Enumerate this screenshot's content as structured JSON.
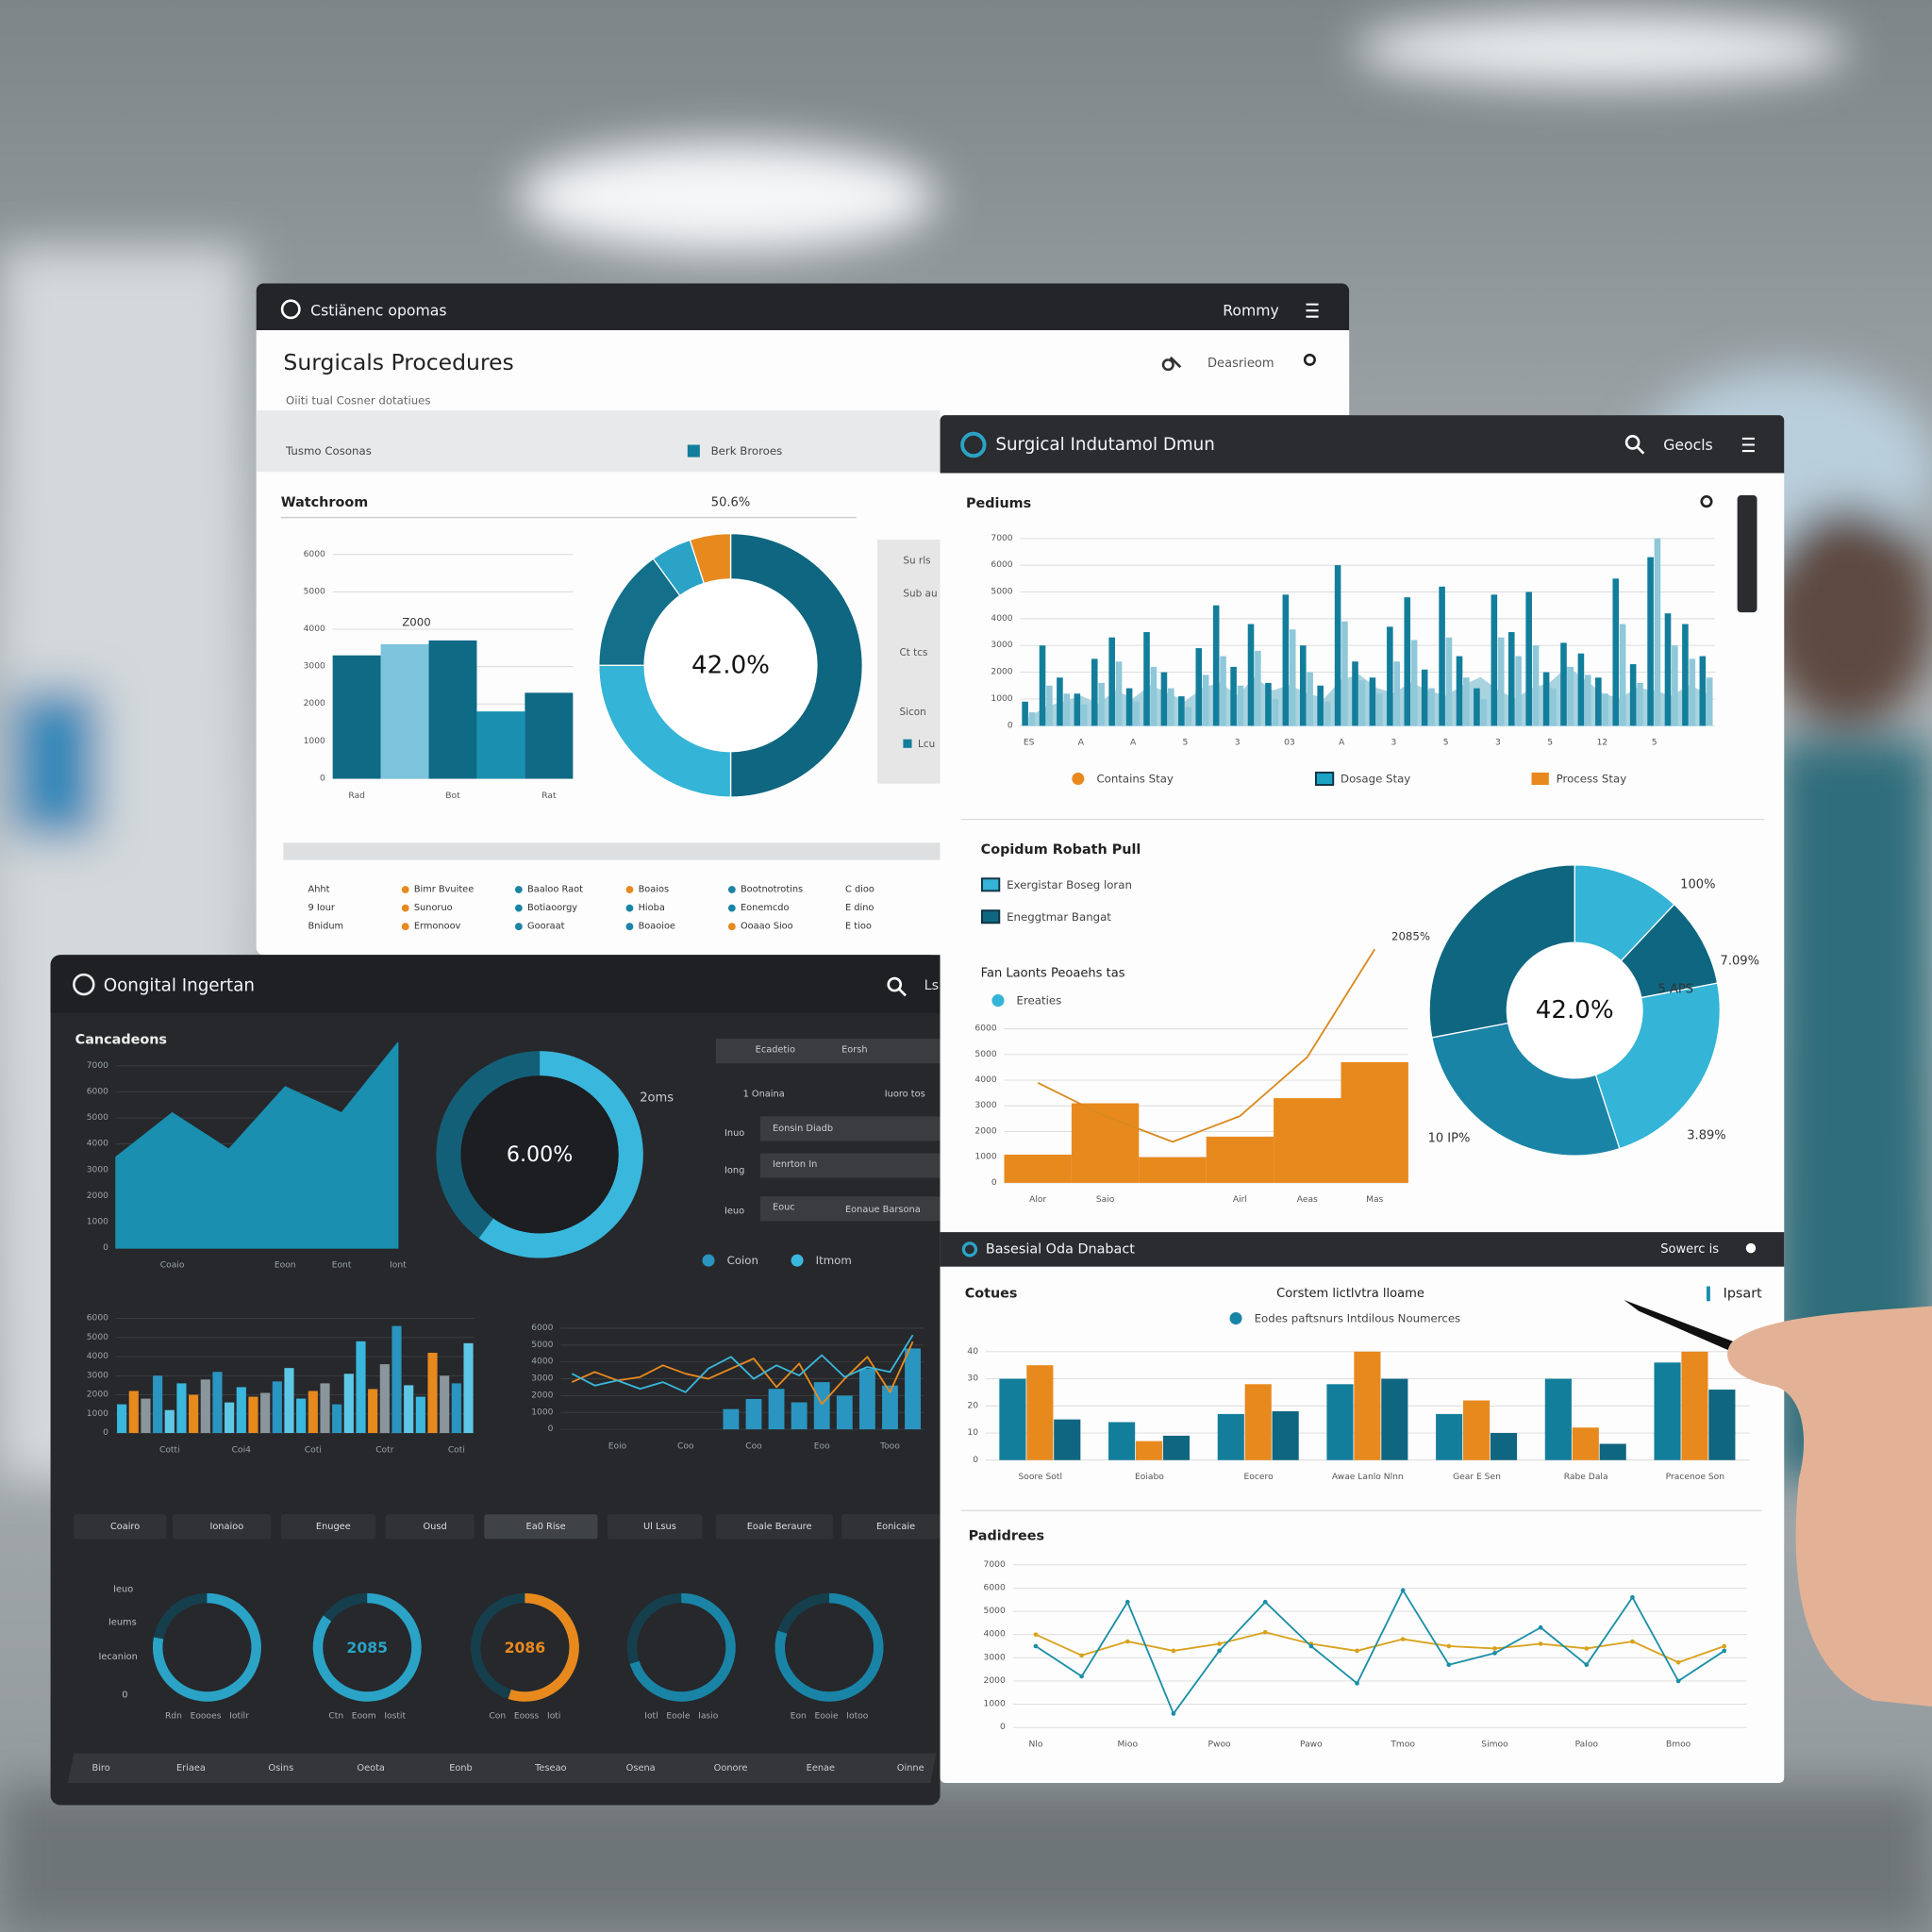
{
  "panel_a": {
    "app": "Cstiänenc opomas",
    "user": "Rommy",
    "title": "Surgicals Procedures",
    "subtitle": "Oiiti tual Cosner dotatiues",
    "band_left": "Tusmo Cosonas",
    "band_right": "Berk Broroes",
    "search": "Deasrieom",
    "side": [
      "Su rls",
      "Sub au",
      "Ct tcs",
      "Sicon",
      "Lcu"
    ],
    "legend": [
      {
        "label": "Bimr Bvuitee",
        "color": "#e8891e"
      },
      {
        "label": "Sunoruo",
        "color": "#e8891e"
      },
      {
        "label": "Ermonoov",
        "color": "#e8891e"
      },
      {
        "label": "Baaloo Raot",
        "color": "#1a84a6"
      },
      {
        "label": "Botiaoorgy",
        "color": "#1a84a6"
      },
      {
        "label": "Gooraat",
        "color": "#1a84a6"
      },
      {
        "label": "Boaios",
        "color": "#e8891e"
      },
      {
        "label": "Hioba",
        "color": "#1a84a6"
      },
      {
        "label": "Boaoioe",
        "color": "#1a84a6"
      },
      {
        "label": "Bootnotrotins",
        "color": "#1a84a6"
      },
      {
        "label": "Eonemcdo",
        "color": "#1a84a6"
      },
      {
        "label": "Ooaao Sioo",
        "color": "#e8891e"
      }
    ],
    "notes": [
      "Ahht",
      "9 Iour",
      "Bnidum",
      "C dioo",
      "E dino",
      "E tioo"
    ]
  },
  "panel_b": {
    "app": "Surgical Indutamol Dmun",
    "user": "Geocls",
    "section": "Basesial Oda Dnabact",
    "section_right": "Sowerc is",
    "action": "Ipsart"
  },
  "panel_c": {
    "app": "Oongital Ingertan",
    "right": "Ls",
    "menu": [
      "Ecadetio",
      "Eorsh",
      "1 Onaina",
      "Iuoro tos",
      "Inuo",
      "Eonsin Diadb",
      "Iong",
      "Ienrton In",
      "Ieuo",
      "Eouc",
      "Eonaue Barsona"
    ],
    "buttons": [
      "Coairo",
      "Ionaioo",
      "Enugee",
      "Ousd",
      "Ea0 Rise",
      "Ul Lsus",
      "Eoale Beraure",
      "Eonicaie"
    ],
    "row_labels": [
      "Ieuo",
      "Ieums",
      "Iecanion",
      "0"
    ],
    "tabs": [
      "Biro",
      "Eriaea",
      "Osins",
      "Oeota",
      "Eonb",
      "Teseao",
      "Osena",
      "Oonore",
      "Eenae",
      "Oinne"
    ]
  },
  "chart_data": [
    {
      "type": "bar",
      "title": "Watchroom",
      "annotation": "Z000",
      "categories": [
        "Rad",
        null,
        "Bot",
        null,
        "Rat"
      ],
      "series": [
        {
          "values": [
            3300,
            3600,
            3700,
            1800,
            2300
          ],
          "color": "#0e6a85",
          "colors": [
            "#0e6a85",
            "#7cc4dc",
            "#0e6a85",
            "#1a8fb0",
            "#0e6a85"
          ]
        }
      ],
      "ylim": [
        0,
        6000
      ],
      "yticks": [
        0,
        1000,
        2000,
        3000,
        4000,
        5000,
        6000
      ],
      "grid": true
    },
    {
      "type": "donut",
      "center_label": "42.0%",
      "annotations": [
        "50.6%"
      ],
      "values": [
        50,
        25,
        15,
        5,
        5
      ],
      "colors": [
        "#0f6680",
        "#34b4d6",
        "#136f8a",
        "#2aa3c6",
        "#e8891e"
      ]
    },
    {
      "type": "bar",
      "title": "Pediums",
      "legend": [
        {
          "label": "Contains  Stay",
          "color": "#e8891e"
        },
        {
          "label": "Dosage  Stay",
          "color": "#1ba3c6"
        },
        {
          "label": "Process  Stay",
          "color": "#e8891e"
        }
      ],
      "categories": [
        "ES",
        null,
        null,
        "A",
        null,
        null,
        "A",
        null,
        null,
        "5",
        null,
        null,
        "3",
        null,
        null,
        "03",
        null,
        null,
        "A",
        null,
        null,
        "3",
        null,
        null,
        "5",
        null,
        null,
        "3",
        null,
        null,
        "5",
        null,
        null,
        "12",
        null,
        null,
        "5",
        null,
        null,
        null
      ],
      "series": [
        {
          "type": "area",
          "color": "#a9d3de",
          "values": [
            300,
            700,
            900,
            1100,
            800,
            1300,
            1000,
            1500,
            1200,
            900,
            1400,
            1600,
            1100,
            1800,
            1300,
            1500,
            1200,
            1000,
            1700,
            1900,
            1400,
            1200,
            1600,
            1300,
            1100,
            1500,
            1800,
            1300,
            1000,
            1400,
            1600,
            2200,
            1700,
            1200,
            1000,
            1400,
            1300,
            1100,
            1500,
            1200
          ]
        },
        {
          "type": "bar",
          "color": "#137e9c",
          "values": [
            900,
            3000,
            1800,
            1200,
            2500,
            3300,
            1400,
            3500,
            2000,
            1100,
            2900,
            4500,
            2200,
            3800,
            1600,
            4900,
            3000,
            1500,
            6000,
            2400,
            1800,
            3700,
            4800,
            2100,
            5200,
            2600,
            1400,
            4900,
            3500,
            5000,
            2000,
            3100,
            2700,
            1800,
            5500,
            2300,
            6300,
            4200,
            3800,
            2600
          ]
        },
        {
          "type": "bar",
          "color": "#8fc8d8",
          "values": [
            500,
            1500,
            1200,
            800,
            1600,
            2400,
            900,
            2200,
            1400,
            700,
            1900,
            2600,
            1500,
            2800,
            1000,
            3600,
            2000,
            900,
            3900,
            1700,
            1200,
            2400,
            3200,
            1400,
            3300,
            1800,
            1000,
            3300,
            2600,
            3000,
            1400,
            2200,
            1900,
            1200,
            3800,
            1600,
            7000,
            3000,
            2500,
            1800
          ]
        }
      ],
      "ylim": [
        0,
        7000
      ],
      "yticks": [
        0,
        1000,
        2000,
        3000,
        4000,
        5000,
        6000,
        7000
      ],
      "grid": true
    },
    {
      "type": "bar",
      "title": "Copidum Robath Pull",
      "subtitle": "Fan Laonts Peoaehs tas",
      "annotation": "2085%",
      "legend": [
        {
          "label": "Exergistar Boseg loran",
          "color": "#34b4d6"
        },
        {
          "label": "Eneggtmar Bangat",
          "color": "#0f6680"
        },
        {
          "label": "Ereaties",
          "color": "#34b4d6"
        }
      ],
      "categories": [
        "Alor",
        "Saio",
        null,
        "Airl",
        "Aeas",
        "Mas"
      ],
      "series": [
        {
          "type": "bar",
          "color": "#e8891e",
          "values": [
            1100,
            3100,
            1000,
            1800,
            3300,
            4700
          ]
        },
        {
          "type": "line",
          "color": "#d98a20",
          "values": [
            3900,
            2600,
            1600,
            2600,
            4900,
            9100
          ]
        }
      ],
      "ylim": [
        0,
        6000
      ],
      "yticks": [
        0,
        1000,
        2000,
        3000,
        4000,
        5000,
        6000
      ],
      "grid": true
    },
    {
      "type": "pie",
      "center_label": "42.0%",
      "annotations": [
        "100%",
        "7.09%",
        "5 APS",
        "3.89%",
        "10 IP%"
      ],
      "values": [
        12,
        10,
        23,
        27,
        28
      ],
      "colors": [
        "#34b4d6",
        "#0f6680",
        "#34b4d6",
        "#1a84a6",
        "#0f6680"
      ]
    },
    {
      "type": "bar",
      "title": "Cotues",
      "subtitle": "Corstem lictlvtra lloame",
      "legend": [
        {
          "label": "Eodes paftsnurs Intdilous Noumerces",
          "color": "#1a84a6"
        }
      ],
      "categories": [
        "Soore Sotl",
        "Eoiabo",
        "Eocero",
        "Awae Lanlo Nlnn",
        "Gear E Sen",
        "Rabe Dala",
        "Pracenoe Son"
      ],
      "series": [
        {
          "color": "#137e9c",
          "values": [
            30,
            14,
            17,
            28,
            17,
            30,
            36
          ]
        },
        {
          "color": "#e8891e",
          "values": [
            35,
            7,
            28,
            40,
            22,
            12,
            40
          ]
        },
        {
          "color": "#0f6680",
          "values": [
            15,
            9,
            18,
            30,
            10,
            6,
            26
          ]
        }
      ],
      "ylim": [
        0,
        40
      ],
      "yticks": [
        0,
        10,
        20,
        30,
        40
      ],
      "grid": true
    },
    {
      "type": "line",
      "title": "Padidrees",
      "categories": [
        "Nlo",
        null,
        "Mioo",
        null,
        "Pwoo",
        null,
        "Pawo",
        null,
        "Tmoo",
        null,
        "Simoo",
        null,
        "Paloo",
        null,
        "Bmoo",
        null
      ],
      "series": [
        {
          "color": "#d9a21e",
          "values": [
            4000,
            3100,
            3700,
            3300,
            3600,
            4100,
            3600,
            3300,
            3800,
            3500,
            3400,
            3600,
            3400,
            3700,
            2800,
            3500
          ]
        },
        {
          "color": "#1a8fa6",
          "values": [
            3500,
            2200,
            5400,
            600,
            3300,
            5400,
            3500,
            1900,
            5900,
            2700,
            3200,
            4300,
            2700,
            5600,
            2000,
            3300
          ]
        }
      ],
      "ylim": [
        0,
        7000
      ],
      "yticks": [
        0,
        1000,
        2000,
        3000,
        4000,
        5000,
        6000,
        7000
      ],
      "grid": true
    },
    {
      "type": "area",
      "title": "Cancadeons",
      "categories": [
        null,
        "Coaio",
        null,
        "Eoon",
        "Eont",
        "Iont"
      ],
      "series": [
        {
          "color": "#1a8fb0",
          "values": [
            3500,
            5200,
            3800,
            6200,
            5200,
            7900
          ]
        }
      ],
      "ylim": [
        0,
        7000
      ],
      "yticks": [
        0,
        1000,
        2000,
        3000,
        4000,
        5000,
        6000,
        7000
      ],
      "grid": true
    },
    {
      "type": "donut",
      "center_label": "6.00%",
      "annotations": [
        "2oms"
      ],
      "legend": [
        {
          "label": "Coion",
          "color": "#2a95c0"
        },
        {
          "label": "Itmom",
          "color": "#3ab7dc"
        }
      ],
      "values": [
        60,
        40
      ],
      "colors": [
        "#3ab7dc",
        "#145f78"
      ]
    },
    {
      "type": "bar",
      "categories": [
        null,
        null,
        null,
        null,
        "Cotti",
        null,
        null,
        null,
        null,
        null,
        "Coi4",
        null,
        null,
        null,
        null,
        null,
        "Coti",
        null,
        null,
        null,
        null,
        null,
        "Cotr",
        null,
        null,
        null,
        null,
        null,
        "Coti",
        null
      ],
      "series": [
        {
          "color": "#3ab7dc",
          "values": [
            1500,
            2200,
            1800,
            3000,
            1200,
            2600,
            2000,
            2800,
            3200,
            1600,
            2400,
            1900,
            2100,
            2700,
            3400,
            1800,
            2200,
            2600,
            1500,
            3100,
            4800,
            2300,
            3600,
            5600,
            2500,
            1900,
            4200,
            3000,
            2600,
            4700
          ],
          "colors": [
            "#3ab7dc",
            "#e8891e",
            "#8a959c",
            "#2a95c0",
            "#5fc7e6",
            "#3ab7dc",
            "#e8891e",
            "#8a959c",
            "#2a95c0",
            "#5fc7e6",
            "#3ab7dc",
            "#e8891e",
            "#8a959c",
            "#2a95c0",
            "#5fc7e6",
            "#3ab7dc",
            "#e8891e",
            "#8a959c",
            "#2a95c0",
            "#5fc7e6",
            "#3ab7dc",
            "#e8891e",
            "#8a959c",
            "#2a95c0",
            "#5fc7e6",
            "#3ab7dc",
            "#e8891e",
            "#8a959c",
            "#2a95c0",
            "#5fc7e6"
          ]
        }
      ],
      "ylim": [
        0,
        6000
      ],
      "yticks": [
        0,
        1000,
        2000,
        3000,
        4000,
        5000,
        6000
      ],
      "grid": true
    },
    {
      "type": "line",
      "categories": [
        null,
        null,
        "Eoio",
        null,
        null,
        "Coo",
        null,
        null,
        "Coo",
        null,
        null,
        "Eoo",
        null,
        null,
        "Tooo",
        null
      ],
      "series": [
        {
          "type": "bar",
          "color": "#2a95c0",
          "values": [
            null,
            null,
            null,
            null,
            null,
            null,
            null,
            1200,
            1800,
            2400,
            1600,
            2800,
            2000,
            3600,
            2600,
            4800
          ]
        },
        {
          "color": "#e8891e",
          "values": [
            2800,
            3400,
            2900,
            3100,
            3800,
            3300,
            3000,
            3600,
            4200,
            2500,
            3900,
            1500,
            3000,
            4300,
            2200,
            5200
          ]
        },
        {
          "color": "#3ab7dc",
          "values": [
            3300,
            2600,
            2900,
            2400,
            2800,
            2200,
            3600,
            4300,
            3000,
            3800,
            3200,
            4400,
            3100,
            3700,
            3400,
            5600
          ]
        }
      ],
      "ylim": [
        0,
        6000
      ],
      "yticks": [
        0,
        1000,
        2000,
        3000,
        4000,
        5000,
        6000
      ],
      "grid": true
    },
    {
      "type": "gauge",
      "value": 78,
      "range": [
        0,
        100
      ],
      "color": "#2aa3c6",
      "caption": "Rdn   Eoooes   Iotilr"
    },
    {
      "type": "gauge",
      "value": 85,
      "range": [
        0,
        100
      ],
      "color": "#2aa3c6",
      "label": "2085",
      "caption": "Ctn   Eoom   Iostit"
    },
    {
      "type": "gauge",
      "value": 55,
      "range": [
        0,
        100
      ],
      "color": "#e8891e",
      "label": "2086",
      "caption": "Con   Eooss   Ioti"
    },
    {
      "type": "gauge",
      "value": 70,
      "range": [
        0,
        100
      ],
      "color": "#1a84a6",
      "caption": "Iotl   Eoole   Iasio"
    },
    {
      "type": "gauge",
      "value": 80,
      "range": [
        0,
        100
      ],
      "color": "#1a84a6",
      "caption": "Eon   Eooie   Iotoo"
    }
  ]
}
